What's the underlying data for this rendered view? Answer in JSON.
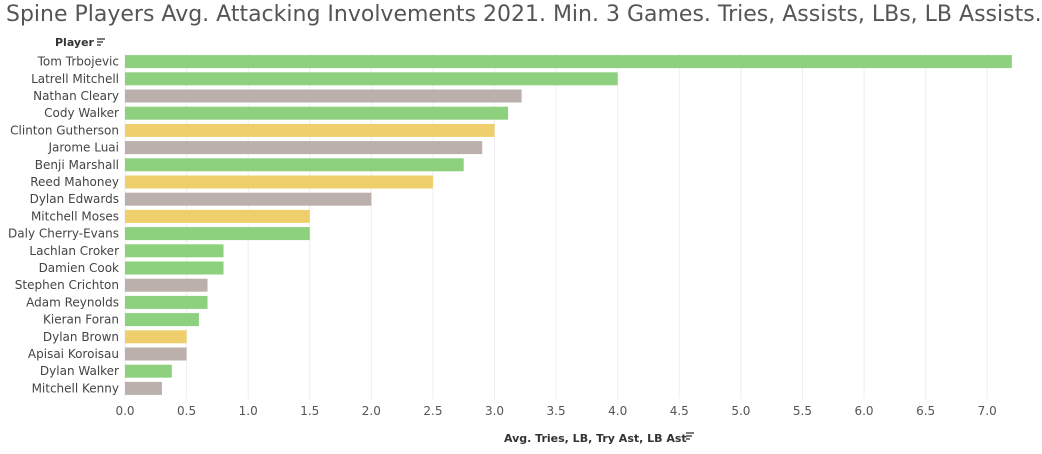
{
  "title": "Spine Players Avg. Attacking Involvements 2021. Min. 3 Games. Tries, Assists, LBs, LB Assists.",
  "icons": {
    "sort": "sort-icon"
  },
  "colors": {
    "green": "#8dd17e",
    "gray": "#bbb0ac",
    "yellow": "#efcf6b",
    "gridline": "#eeeeee"
  },
  "chart_data": {
    "type": "bar",
    "orientation": "horizontal",
    "title": "Spine Players Avg. Attacking Involvements 2021. Min. 3 Games. Tries, Assists, LBs, LB Assists.",
    "ylabel": "Player",
    "xlabel": "Avg. Tries, LB, Try Ast, LB Ast",
    "xlim": [
      0,
      7.25
    ],
    "xticks": [
      "0.0",
      "0.5",
      "1.0",
      "1.5",
      "2.0",
      "2.5",
      "3.0",
      "3.5",
      "4.0",
      "4.5",
      "5.0",
      "5.5",
      "6.0",
      "6.5",
      "7.0"
    ],
    "grid": true,
    "categories": [
      "Tom Trbojevic",
      "Latrell Mitchell",
      "Nathan Cleary",
      "Cody Walker",
      "Clinton Gutherson",
      "Jarome Luai",
      "Benji Marshall",
      "Reed Mahoney",
      "Dylan Edwards",
      "Mitchell Moses",
      "Daly Cherry-Evans",
      "Lachlan Croker",
      "Damien Cook",
      "Stephen Crichton",
      "Adam Reynolds",
      "Kieran Foran",
      "Dylan Brown",
      "Apisai Koroisau",
      "Dylan Walker",
      "Mitchell Kenny"
    ],
    "values": [
      7.2,
      4.0,
      3.22,
      3.11,
      3.0,
      2.9,
      2.75,
      2.5,
      2.0,
      1.5,
      1.5,
      0.8,
      0.8,
      0.67,
      0.67,
      0.6,
      0.5,
      0.5,
      0.38,
      0.3
    ],
    "colors": [
      "#8dd17e",
      "#8dd17e",
      "#bbb0ac",
      "#8dd17e",
      "#efcf6b",
      "#bbb0ac",
      "#8dd17e",
      "#efcf6b",
      "#bbb0ac",
      "#efcf6b",
      "#8dd17e",
      "#8dd17e",
      "#8dd17e",
      "#bbb0ac",
      "#8dd17e",
      "#8dd17e",
      "#efcf6b",
      "#bbb0ac",
      "#8dd17e",
      "#bbb0ac"
    ]
  }
}
